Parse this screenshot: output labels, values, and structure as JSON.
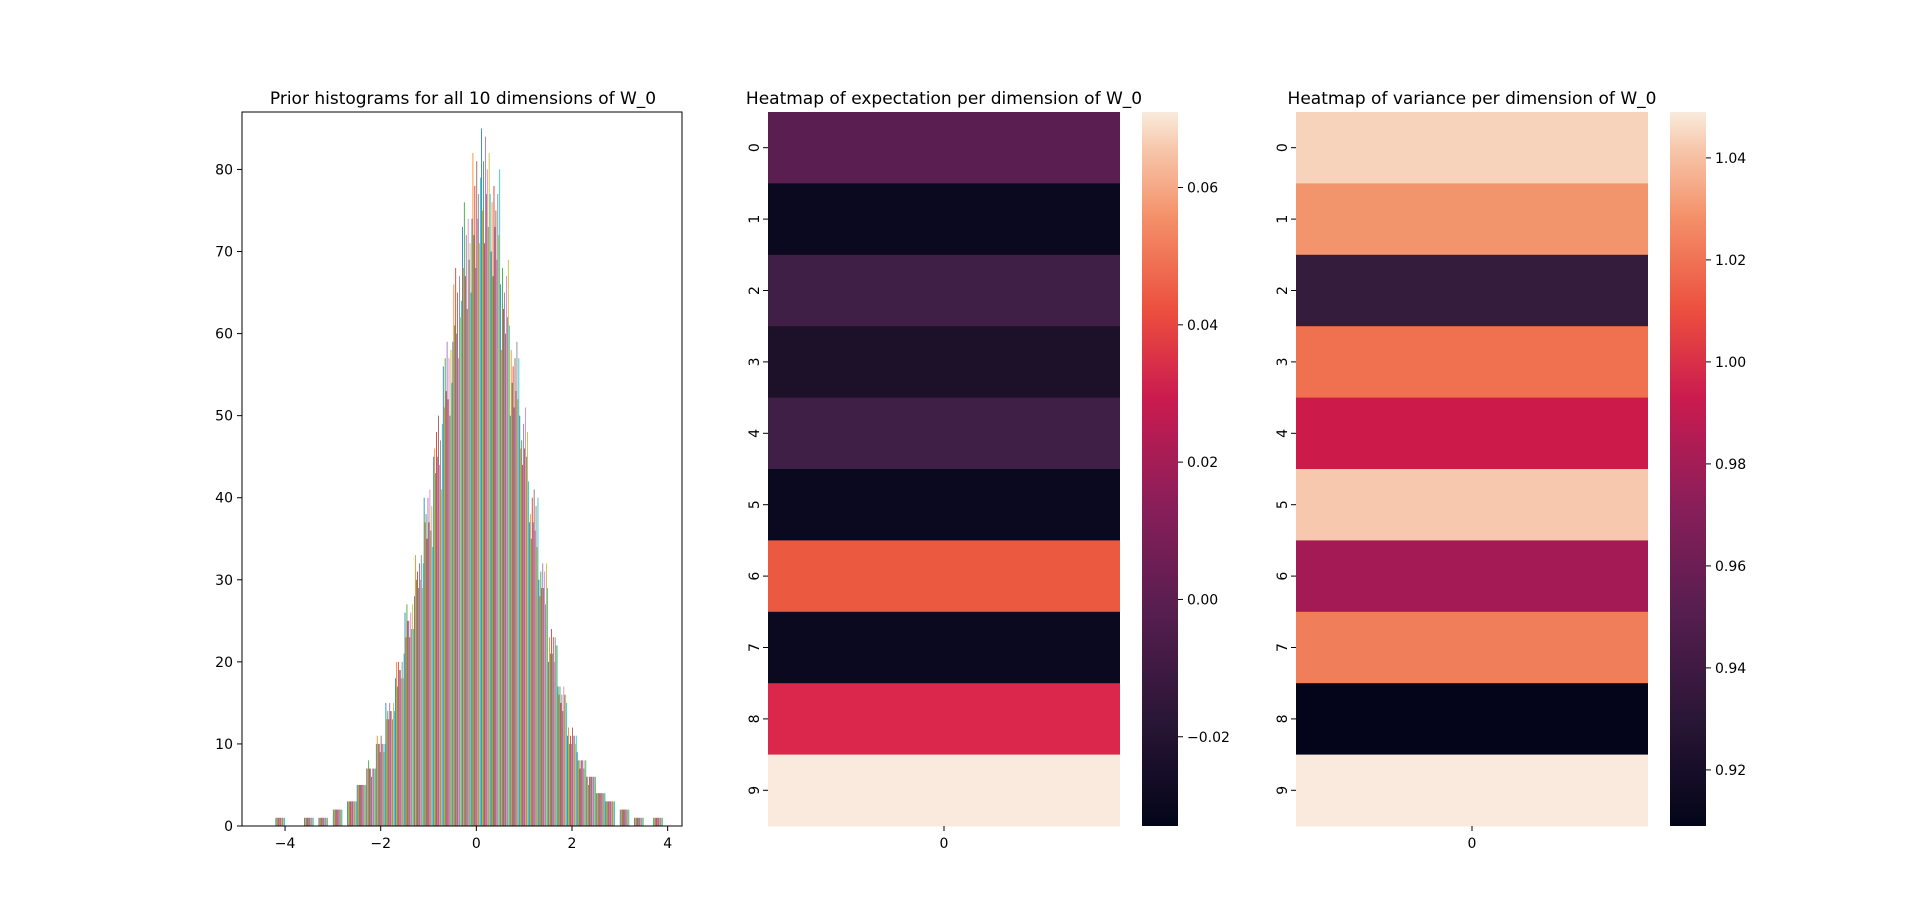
{
  "chart_data": [
    {
      "type": "bar",
      "title": "Prior histograms for all 10 dimensions of W_0",
      "xlabel": "",
      "ylabel": "",
      "xlim": [
        -4.9,
        4.3
      ],
      "ylim": [
        0,
        87
      ],
      "xticks": [
        -4,
        -2,
        0,
        2,
        4
      ],
      "xtick_labels": [
        "−4",
        "−2",
        "0",
        "2",
        "4"
      ],
      "yticks": [
        0,
        10,
        20,
        30,
        40,
        50,
        60,
        70,
        80
      ],
      "ytick_labels": [
        "0",
        "10",
        "20",
        "30",
        "40",
        "50",
        "60",
        "70",
        "80"
      ],
      "grid": false,
      "series_colors": [
        "#1f77b4",
        "#ff7f0e",
        "#2ca02c",
        "#d62728",
        "#9467bd",
        "#8c564b",
        "#e377c2",
        "#7f7f7f",
        "#bcbd22",
        "#17becf"
      ],
      "bins": [
        -4.1,
        -3.8,
        -3.5,
        -3.2,
        -2.9,
        -2.6,
        -2.4,
        -2.2,
        -2.0,
        -1.8,
        -1.6,
        -1.4,
        -1.2,
        -1.0,
        -0.8,
        -0.6,
        -0.4,
        -0.2,
        0.0,
        0.2,
        0.4,
        0.6,
        0.8,
        1.0,
        1.2,
        1.4,
        1.6,
        1.8,
        2.0,
        2.2,
        2.4,
        2.6,
        2.8,
        3.1,
        3.4,
        3.8
      ],
      "bin_heights": [
        1,
        0,
        1,
        1,
        2,
        3,
        5,
        7,
        10,
        14,
        19,
        25,
        31,
        38,
        46,
        55,
        63,
        70,
        76,
        79,
        74,
        64,
        55,
        47,
        38,
        30,
        22,
        16,
        11,
        8,
        6,
        4,
        3,
        2,
        1,
        1
      ]
    },
    {
      "type": "heatmap",
      "title": "Heatmap of expectation per dimension of W_0",
      "x_tick_labels": [
        "0"
      ],
      "y_tick_labels": [
        "0",
        "1",
        "2",
        "3",
        "4",
        "5",
        "6",
        "7",
        "8",
        "9"
      ],
      "values": [
        -0.005,
        -0.032,
        -0.012,
        -0.026,
        -0.013,
        -0.032,
        0.043,
        -0.032,
        0.028,
        0.071
      ],
      "colormap": "rocket",
      "cell_colors": [
        "#5a1e50",
        "#0b0920",
        "#401f46",
        "#1c1129",
        "#3f1f45",
        "#0b0920",
        "#ec5941",
        "#0b0920",
        "#da274b",
        "#faeade"
      ],
      "colorbar_ticks": [
        -0.02,
        0.0,
        0.02,
        0.04,
        0.06
      ],
      "colorbar_tick_labels": [
        "−0.02",
        "0.00",
        "0.02",
        "0.04",
        "0.06"
      ],
      "vmin": -0.033,
      "vmax": 0.071
    },
    {
      "type": "heatmap",
      "title": "Heatmap of variance per dimension of W_0",
      "x_tick_labels": [
        "0"
      ],
      "y_tick_labels": [
        "0",
        "1",
        "2",
        "3",
        "4",
        "5",
        "6",
        "7",
        "8",
        "9"
      ],
      "values": [
        1.041,
        1.016,
        0.933,
        1.011,
        0.981,
        1.042,
        0.965,
        1.014,
        0.909,
        1.049
      ],
      "colormap": "rocket",
      "cell_colors": [
        "#f8d3bb",
        "#f2956d",
        "#341c3c",
        "#f0714f",
        "#cc1a4b",
        "#f7c8ad",
        "#a41a55",
        "#f07e5b",
        "#04051b",
        "#faeade"
      ],
      "colorbar_ticks": [
        0.92,
        0.94,
        0.96,
        0.98,
        1.0,
        1.02,
        1.04
      ],
      "colorbar_tick_labels": [
        "0.92",
        "0.94",
        "0.96",
        "0.98",
        "1.00",
        "1.02",
        "1.04"
      ],
      "vmin": 0.909,
      "vmax": 1.049
    }
  ]
}
